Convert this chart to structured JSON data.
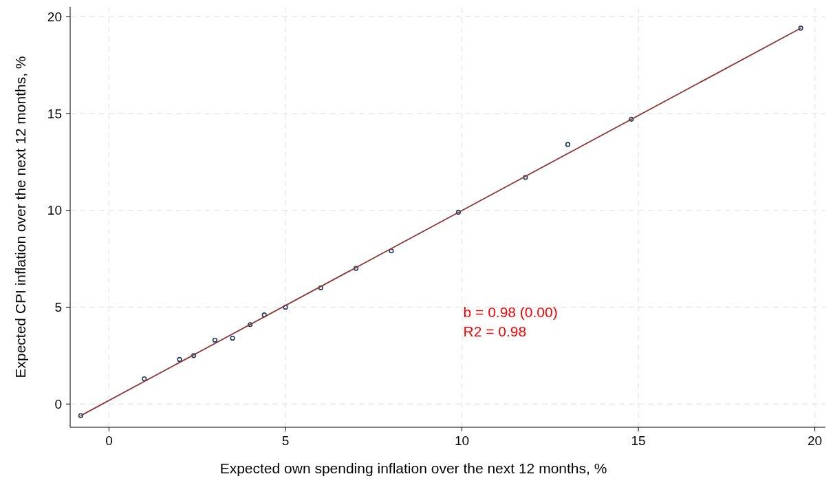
{
  "chart_data": {
    "type": "scatter",
    "xlabel": "Expected own spending inflation over the next 12 months, %",
    "ylabel": "Expected CPI inflation over the next 12 months, %",
    "xlim": [
      -1.1,
      20.3
    ],
    "ylim": [
      -1.2,
      20.5
    ],
    "xticks": [
      0,
      5,
      10,
      15,
      20
    ],
    "yticks": [
      0,
      5,
      10,
      15,
      20
    ],
    "grid": true,
    "marker": "circle",
    "series": [
      {
        "color": "#1f3b5a",
        "x": [
          -0.8,
          1.0,
          2.0,
          2.4,
          3.0,
          3.5,
          4.0,
          4.4,
          5.0,
          6.0,
          7.0,
          8.0,
          9.9,
          11.8,
          13.0,
          14.8,
          19.6
        ],
        "values": [
          -0.6,
          1.3,
          2.3,
          2.5,
          3.3,
          3.4,
          4.1,
          4.6,
          5.0,
          6.0,
          7.0,
          7.9,
          9.9,
          11.7,
          13.4,
          14.7,
          19.4
        ]
      },
      {
        "type": "line",
        "color": "#8b3a3a",
        "marker": "none",
        "line_style": "solid",
        "x": [
          -0.8,
          19.6
        ],
        "values": [
          -0.6,
          19.4
        ]
      }
    ],
    "annotations": [
      "b = 0.98 (0.00)",
      "R2 = 0.98"
    ]
  }
}
